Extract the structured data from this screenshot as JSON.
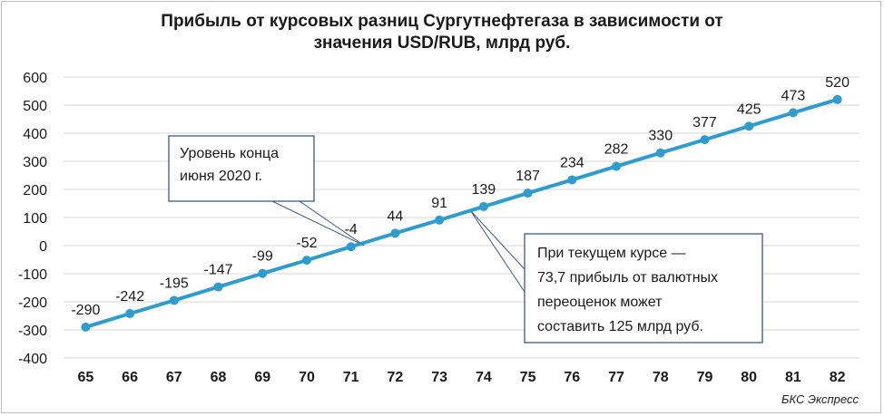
{
  "chart_data": {
    "type": "line",
    "title": "Прибыль от курсовых разниц Сургутнефтегаза в зависимости от значения USD/RUB, млрд руб.",
    "x": [
      65,
      66,
      67,
      68,
      69,
      70,
      71,
      72,
      73,
      74,
      75,
      76,
      77,
      78,
      79,
      80,
      81,
      82
    ],
    "series": [
      {
        "values": [
          -290,
          -242,
          -195,
          -147,
          -99,
          -52,
          -4,
          44,
          91,
          139,
          187,
          234,
          282,
          330,
          377,
          425,
          473,
          520
        ]
      }
    ],
    "xlabels": [
      "65",
      "66",
      "67",
      "68",
      "69",
      "70",
      "71",
      "72",
      "73",
      "74",
      "75",
      "76",
      "77",
      "78",
      "79",
      "80",
      "81",
      "82"
    ],
    "data_labels": [
      "-290",
      "-242",
      "-195",
      "-147",
      "-99",
      "-52",
      "-4",
      "44",
      "91",
      "139",
      "187",
      "234",
      "282",
      "330",
      "377",
      "425",
      "473",
      "520"
    ],
    "yticks": [
      600,
      500,
      400,
      300,
      200,
      100,
      0,
      -100,
      -200,
      -300,
      -400
    ],
    "ytick_labels": [
      "600",
      "500",
      "400",
      "300",
      "200",
      "100",
      "0",
      "-100",
      "-200",
      "-300",
      "-400"
    ],
    "ylim": [
      -400,
      600
    ],
    "xlim": [
      65,
      82
    ],
    "grid": true,
    "line_color": "#2e9ccf",
    "annotations": [
      {
        "lines": [
          "Уровень конца",
          "июня 2020 г."
        ],
        "points_to_x": 71.3,
        "points_to_y": 0
      },
      {
        "lines": [
          "При текущем курсе —",
          "73,7 прибыль от валютных",
          "переоценок может",
          "составить 125 млрд руб."
        ],
        "points_to_x": 73.7,
        "points_to_y": 125
      }
    ]
  },
  "source": "БКС Экспресс"
}
